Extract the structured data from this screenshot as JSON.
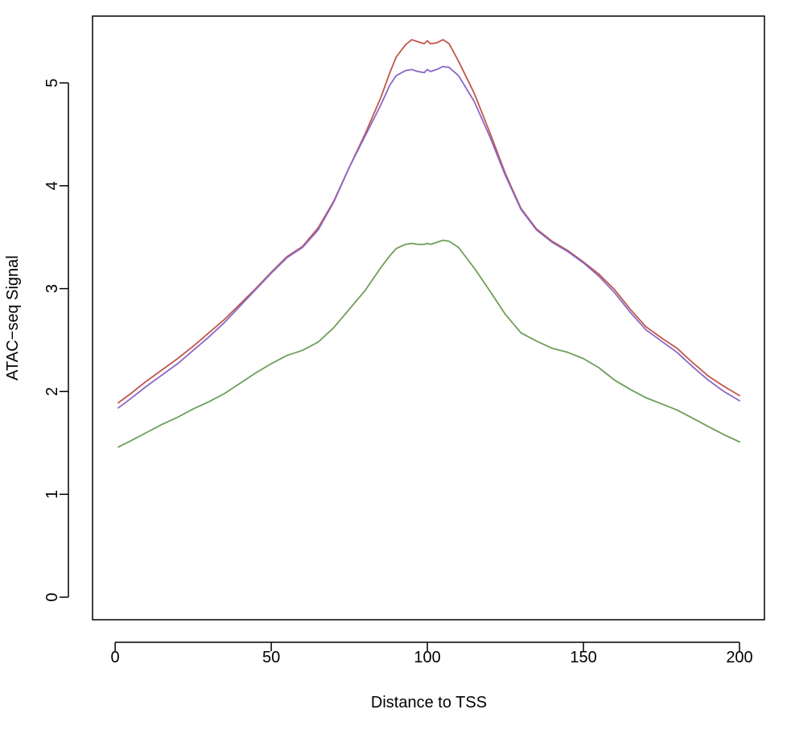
{
  "chart_data": {
    "type": "line",
    "title": "",
    "xlabel": "Distance to TSS",
    "ylabel": "ATAC−seq Signal",
    "xlim": [
      1,
      200
    ],
    "ylim": [
      0,
      5.4
    ],
    "xticks": [
      0,
      50,
      100,
      150,
      200
    ],
    "yticks": [
      0,
      1,
      2,
      3,
      4,
      5
    ],
    "x_tick_labels": [
      "0",
      "50",
      "100",
      "150",
      "200"
    ],
    "y_tick_labels": [
      "0",
      "1",
      "2",
      "3",
      "4",
      "5"
    ],
    "grid": false,
    "legend": "none",
    "x": [
      1,
      5,
      10,
      15,
      20,
      25,
      30,
      35,
      40,
      45,
      50,
      55,
      60,
      65,
      70,
      75,
      80,
      85,
      88,
      90,
      93,
      95,
      97,
      99,
      100,
      101,
      103,
      105,
      107,
      110,
      115,
      120,
      125,
      130,
      135,
      140,
      145,
      150,
      155,
      160,
      165,
      170,
      175,
      180,
      185,
      190,
      195,
      200
    ],
    "series": [
      {
        "color": "#c1574a",
        "values": [
          1.89,
          1.98,
          2.1,
          2.21,
          2.32,
          2.44,
          2.57,
          2.7,
          2.85,
          3.0,
          3.16,
          3.31,
          3.41,
          3.59,
          3.85,
          4.18,
          4.5,
          4.85,
          5.1,
          5.25,
          5.37,
          5.42,
          5.4,
          5.38,
          5.41,
          5.38,
          5.39,
          5.42,
          5.38,
          5.21,
          4.9,
          4.52,
          4.12,
          3.78,
          3.58,
          3.46,
          3.37,
          3.26,
          3.14,
          2.99,
          2.8,
          2.63,
          2.52,
          2.42,
          2.28,
          2.15,
          2.05,
          1.96
        ]
      },
      {
        "color": "#8b67c7",
        "values": [
          1.84,
          1.93,
          2.05,
          2.16,
          2.27,
          2.4,
          2.53,
          2.67,
          2.83,
          2.99,
          3.15,
          3.3,
          3.4,
          3.57,
          3.84,
          4.18,
          4.48,
          4.78,
          4.98,
          5.07,
          5.12,
          5.13,
          5.11,
          5.1,
          5.13,
          5.11,
          5.13,
          5.16,
          5.15,
          5.07,
          4.82,
          4.48,
          4.1,
          3.77,
          3.57,
          3.45,
          3.36,
          3.25,
          3.12,
          2.96,
          2.77,
          2.6,
          2.49,
          2.38,
          2.24,
          2.11,
          2.0,
          1.91
        ]
      },
      {
        "color": "#6e9e5a",
        "values": [
          1.46,
          1.52,
          1.6,
          1.68,
          1.75,
          1.83,
          1.9,
          1.98,
          2.08,
          2.18,
          2.27,
          2.35,
          2.4,
          2.48,
          2.62,
          2.8,
          2.98,
          3.2,
          3.32,
          3.39,
          3.43,
          3.44,
          3.43,
          3.43,
          3.44,
          3.43,
          3.45,
          3.47,
          3.46,
          3.4,
          3.2,
          2.98,
          2.75,
          2.57,
          2.49,
          2.42,
          2.38,
          2.32,
          2.23,
          2.11,
          2.02,
          1.94,
          1.88,
          1.82,
          1.74,
          1.66,
          1.58,
          1.51
        ]
      }
    ]
  }
}
